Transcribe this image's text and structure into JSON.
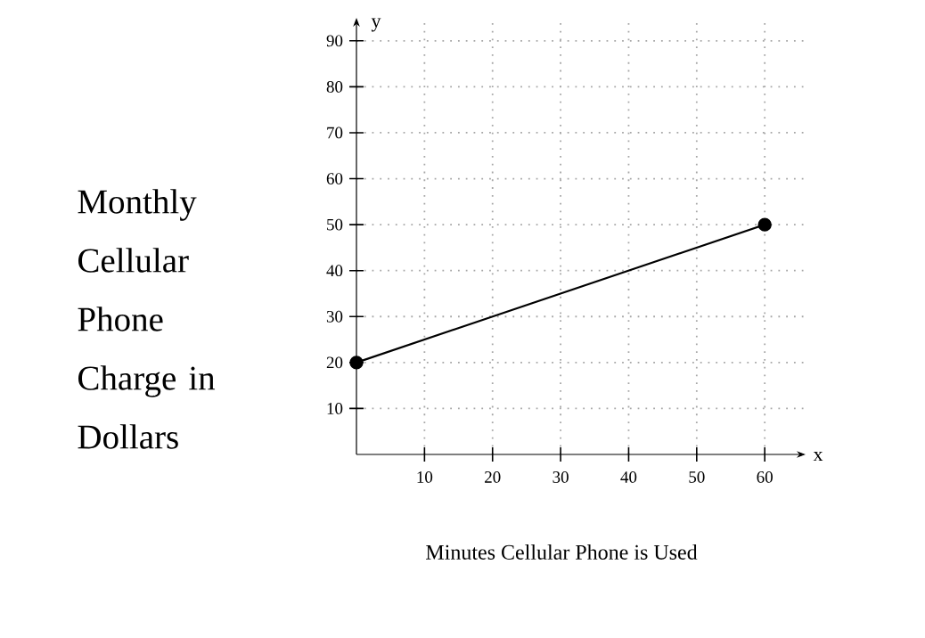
{
  "chart_data": {
    "type": "line",
    "xlabel": "Minutes Cellular Phone is Used",
    "ylabel": "Monthly Cellular Phone Charge in Dollars",
    "x": [
      0,
      60
    ],
    "values": [
      20,
      50
    ],
    "color": "#000000",
    "marker": "circle",
    "line_style": "solid",
    "xlim": [
      0,
      66
    ],
    "ylim": [
      0,
      95
    ],
    "xticks": [
      10,
      20,
      30,
      40,
      50,
      60
    ],
    "yticks": [
      10,
      20,
      30,
      40,
      50,
      60,
      70,
      80,
      90
    ],
    "grid": true,
    "annotations": [
      "x",
      "y"
    ]
  }
}
